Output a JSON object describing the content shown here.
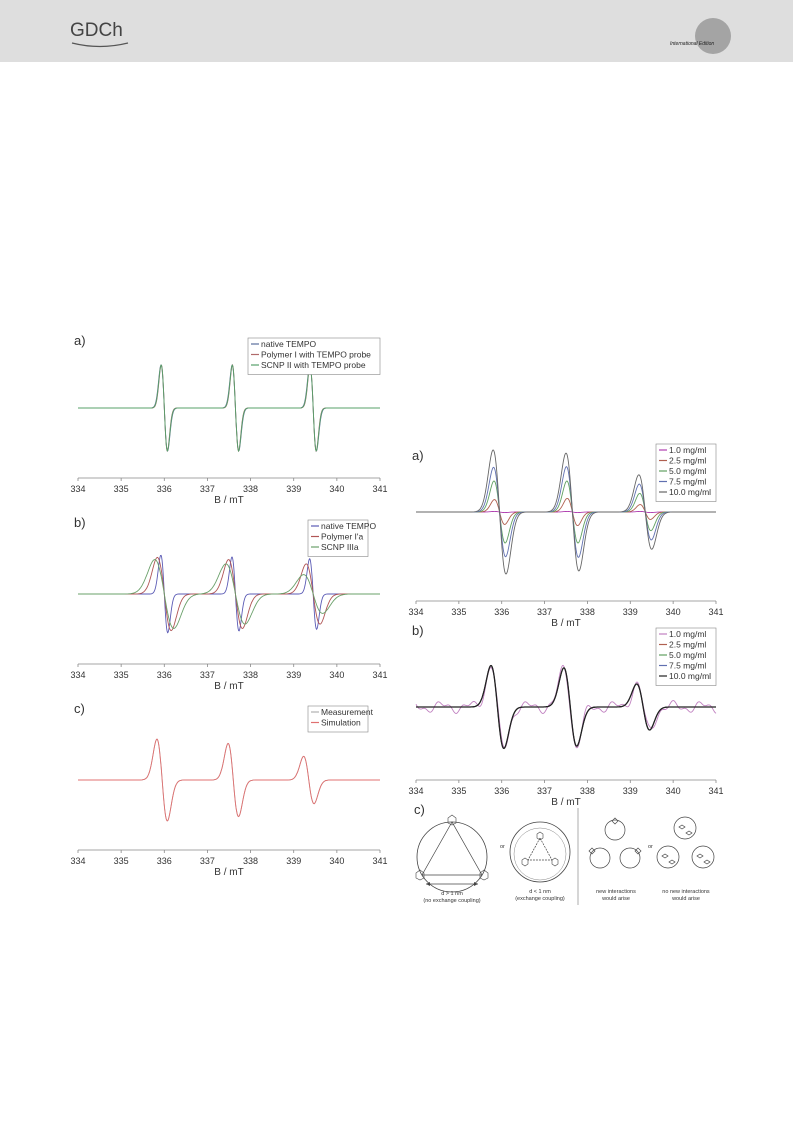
{
  "header": {
    "logo_text": "GDCh",
    "edition_text": "International Edition"
  },
  "chart_data": [
    {
      "id": "left-a",
      "type": "line",
      "panel_label": "a)",
      "xlabel": "B / mT",
      "xlim": [
        334,
        341
      ],
      "ticks": [
        "334",
        "335",
        "336",
        "337",
        "338",
        "339",
        "340",
        "341"
      ],
      "legend_position": "top-right",
      "peaks": [
        336.0,
        337.65,
        339.45
      ],
      "series": [
        {
          "name": "native TEMPO",
          "color": "#5a6e9c",
          "amps": [
            1.0,
            1.0,
            1.0
          ],
          "width": 0.075
        },
        {
          "name": "Polymer I with TEMPO probe",
          "color": "#b06a6a",
          "amps": [
            1.0,
            1.0,
            1.0
          ],
          "width": 0.07
        },
        {
          "name": "SCNP II with TEMPO probe",
          "color": "#57a06a",
          "amps": [
            1.0,
            1.0,
            1.0
          ],
          "width": 0.072
        }
      ]
    },
    {
      "id": "left-b",
      "type": "line",
      "panel_label": "b)",
      "xlabel": "B / mT",
      "xlim": [
        334,
        341
      ],
      "ticks": [
        "334",
        "335",
        "336",
        "337",
        "338",
        "339",
        "340",
        "341"
      ],
      "legend_position": "top-right",
      "peaks": [
        336.0,
        337.65,
        339.45
      ],
      "series": [
        {
          "name": "native TEMPO",
          "color": "#5b5bb5",
          "amps": [
            0.9,
            0.86,
            0.82
          ],
          "width": 0.08
        },
        {
          "name": "Polymer I'a",
          "color": "#b05555",
          "amps": [
            0.85,
            0.8,
            0.7
          ],
          "width": 0.16
        },
        {
          "name": "SCNP IIIa",
          "color": "#6aa06a",
          "amps": [
            0.8,
            0.7,
            0.45
          ],
          "width": 0.22
        }
      ]
    },
    {
      "id": "left-c",
      "type": "line",
      "panel_label": "c)",
      "xlabel": "B / mT",
      "xlim": [
        334,
        341
      ],
      "ticks": [
        "334",
        "335",
        "336",
        "337",
        "338",
        "339",
        "340",
        "341"
      ],
      "legend_position": "top-right",
      "peaks": [
        335.95,
        337.6,
        339.35
      ],
      "series": [
        {
          "name": "Measurement",
          "color": "#b0b0b0",
          "amps": [
            0.95,
            0.85,
            0.55
          ],
          "width": 0.12
        },
        {
          "name": "Simulation",
          "color": "#e07070",
          "amps": [
            0.95,
            0.85,
            0.55
          ],
          "width": 0.12
        }
      ]
    },
    {
      "id": "right-a",
      "type": "line",
      "panel_label": "a)",
      "xlabel": "B / mT",
      "xlim": [
        334,
        341
      ],
      "ticks": [
        "334",
        "335",
        "336",
        "337",
        "338",
        "339",
        "340",
        "341"
      ],
      "legend_position": "top-right",
      "peaks": [
        335.95,
        337.65,
        339.35
      ],
      "series": [
        {
          "name": "1.0 mg/ml",
          "color": "#b040b0",
          "amps": [
            0.03,
            0.03,
            0.03
          ],
          "width": 0.12
        },
        {
          "name": "2.5 mg/ml",
          "color": "#b06050",
          "amps": [
            0.2,
            0.22,
            0.12
          ],
          "width": 0.12
        },
        {
          "name": "5.0 mg/ml",
          "color": "#60a060",
          "amps": [
            0.5,
            0.5,
            0.3
          ],
          "width": 0.13
        },
        {
          "name": "7.5 mg/ml",
          "color": "#6070b0",
          "amps": [
            0.72,
            0.73,
            0.45
          ],
          "width": 0.14
        },
        {
          "name": "10.0 mg/ml",
          "color": "#666666",
          "amps": [
            1.0,
            0.95,
            0.6
          ],
          "width": 0.15
        }
      ]
    },
    {
      "id": "right-b",
      "type": "line",
      "panel_label": "b)",
      "xlabel": "B / mT",
      "xlim": [
        334,
        341
      ],
      "ticks": [
        "334",
        "335",
        "336",
        "337",
        "338",
        "339",
        "340",
        "341"
      ],
      "legend_position": "top-right",
      "peaks": [
        335.9,
        337.6,
        339.3
      ],
      "series": [
        {
          "name": "1.0 mg/ml",
          "color": "#c080c0",
          "amps": [
            0.9,
            0.85,
            0.5
          ],
          "width": 0.15
        },
        {
          "name": "2.5 mg/ml",
          "color": "#b06050",
          "amps": [
            0.9,
            0.85,
            0.5
          ],
          "width": 0.15
        },
        {
          "name": "5.0 mg/ml",
          "color": "#60a060",
          "amps": [
            0.9,
            0.85,
            0.5
          ],
          "width": 0.15
        },
        {
          "name": "7.5 mg/ml",
          "color": "#6070b0",
          "amps": [
            0.9,
            0.85,
            0.5
          ],
          "width": 0.15
        },
        {
          "name": "10.0 mg/ml",
          "color": "#222222",
          "amps": [
            0.9,
            0.85,
            0.5
          ],
          "width": 0.15
        }
      ]
    }
  ],
  "diagram": {
    "panel_label": "c)",
    "or_left": "or",
    "or_right": "or",
    "caption1_line1": "d > 1 nm",
    "caption1_line2": "(no exchange coupling)",
    "caption2_line1": "d < 1 nm",
    "caption2_line2": "(exchange coupling)",
    "caption3_line1": "new interactions",
    "caption3_line2": "would arise",
    "caption4_line1": "no new interactions",
    "caption4_line2": "would arise"
  }
}
